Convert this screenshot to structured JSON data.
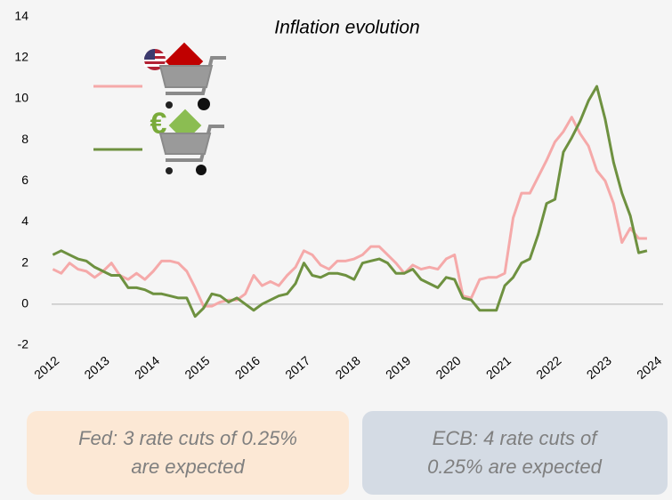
{
  "chart_data": {
    "type": "line",
    "title": "Inflation evolution",
    "x": [
      2011.9,
      2012.067,
      2012.233,
      2012.4,
      2012.567,
      2012.733,
      2012.9,
      2013.067,
      2013.233,
      2013.4,
      2013.567,
      2013.733,
      2013.9,
      2014.067,
      2014.233,
      2014.4,
      2014.567,
      2014.733,
      2014.9,
      2015.067,
      2015.233,
      2015.4,
      2015.567,
      2015.733,
      2015.9,
      2016.067,
      2016.233,
      2016.4,
      2016.567,
      2016.733,
      2016.9,
      2017.067,
      2017.233,
      2017.4,
      2017.567,
      2017.733,
      2017.9,
      2018.067,
      2018.233,
      2018.4,
      2018.567,
      2018.733,
      2018.9,
      2019.067,
      2019.233,
      2019.4,
      2019.567,
      2019.733,
      2019.9,
      2020.067,
      2020.233,
      2020.4,
      2020.567,
      2020.733,
      2020.9,
      2021.067,
      2021.233,
      2021.4,
      2021.567,
      2021.733,
      2021.9,
      2022.067,
      2022.233,
      2022.4,
      2022.567,
      2022.733,
      2022.9,
      2023.067,
      2023.233,
      2023.4,
      2023.567,
      2023.733
    ],
    "series": [
      {
        "color": "#f5a9a9",
        "values": [
          1.7,
          1.5,
          2.0,
          1.7,
          1.6,
          1.3,
          1.6,
          2.0,
          1.4,
          1.2,
          1.5,
          1.2,
          1.6,
          2.1,
          2.1,
          2.0,
          1.6,
          0.8,
          -0.1,
          -0.1,
          0.1,
          0.2,
          0.2,
          0.5,
          1.4,
          0.9,
          1.1,
          0.9,
          1.4,
          1.8,
          2.6,
          2.4,
          1.9,
          1.7,
          2.1,
          2.1,
          2.2,
          2.4,
          2.8,
          2.8,
          2.4,
          2.0,
          1.5,
          1.9,
          1.7,
          1.8,
          1.7,
          2.2,
          2.4,
          0.4,
          0.3,
          1.2,
          1.3,
          1.3,
          1.5,
          4.2,
          5.4,
          5.4,
          6.2,
          7.0,
          7.9,
          8.4,
          9.1,
          8.3,
          7.7,
          6.5,
          6.0,
          4.9,
          3.0,
          3.7,
          3.2,
          3.2
        ]
      },
      {
        "color": "#6e9140",
        "values": [
          2.4,
          2.6,
          2.4,
          2.2,
          2.1,
          1.8,
          1.6,
          1.4,
          1.4,
          0.8,
          0.8,
          0.7,
          0.5,
          0.5,
          0.4,
          0.3,
          0.3,
          -0.6,
          -0.2,
          0.5,
          0.4,
          0.1,
          0.3,
          0.0,
          -0.3,
          0.0,
          0.2,
          0.4,
          0.5,
          1.0,
          2.0,
          1.4,
          1.3,
          1.5,
          1.5,
          1.4,
          1.2,
          2.0,
          2.1,
          2.2,
          2.0,
          1.5,
          1.5,
          1.7,
          1.2,
          1.0,
          0.8,
          1.3,
          1.2,
          0.3,
          0.2,
          -0.3,
          -0.3,
          -0.3,
          0.9,
          1.3,
          2.0,
          2.2,
          3.4,
          4.9,
          5.1,
          7.4,
          8.1,
          8.9,
          9.9,
          10.6,
          9.0,
          6.9,
          5.4,
          4.3,
          2.5,
          2.6
        ]
      }
    ],
    "xlim": [
      2012,
      2024
    ],
    "xticks": [
      2012,
      2013,
      2014,
      2015,
      2016,
      2017,
      2018,
      2019,
      2020,
      2021,
      2022,
      2023,
      2024
    ],
    "ylim": [
      -2,
      14
    ],
    "yticks": [
      -2,
      0,
      2,
      4,
      6,
      8,
      10,
      12,
      14
    ],
    "reference_line": 0,
    "grid": false
  },
  "notes": [
    {
      "lines": [
        "Fed: 3 rate cuts of 0.25%",
        "are expected"
      ]
    },
    {
      "lines": [
        "ECB: 4 rate cuts of",
        "0.25% are expected"
      ]
    }
  ]
}
